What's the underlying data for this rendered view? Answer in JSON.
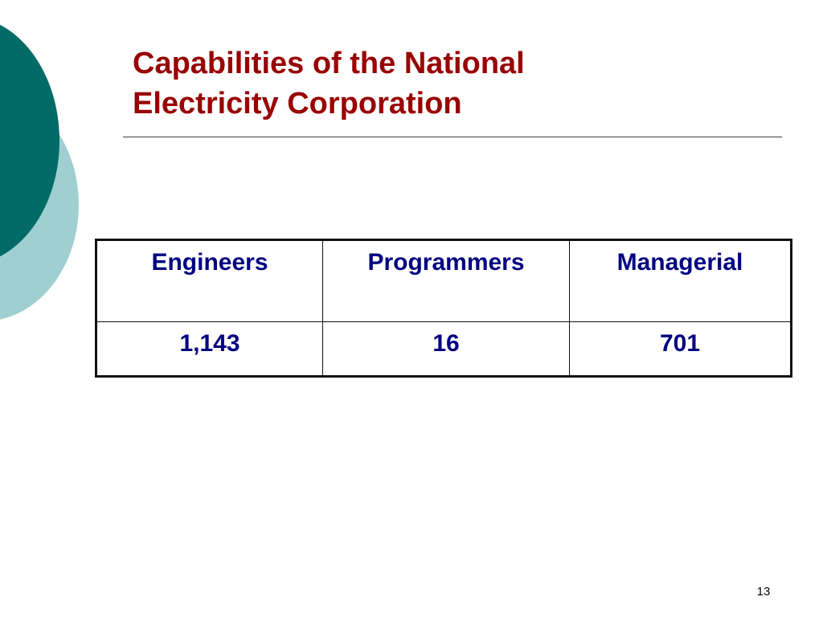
{
  "slide": {
    "title_line_1": "Capabilities of the National",
    "title_line_2": "Electricity Corporation",
    "page_number": "13",
    "colors": {
      "title": "#990000",
      "table_text": "#000080",
      "circle_dark": "#006b67",
      "circle_light": "#9fcfd0"
    }
  },
  "table": {
    "headers": [
      "Engineers",
      "Programmers",
      "Managerial"
    ],
    "rows": [
      [
        "1,143",
        "16",
        "701"
      ]
    ]
  }
}
